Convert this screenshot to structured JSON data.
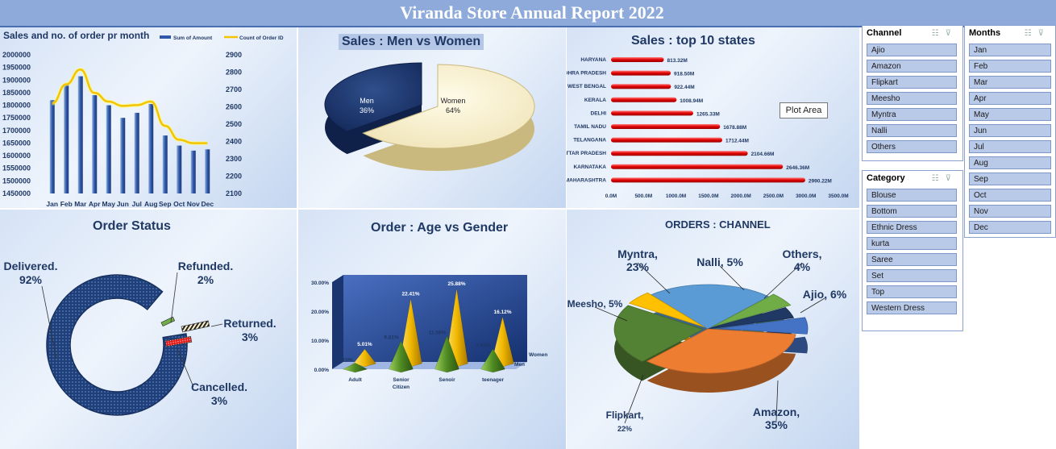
{
  "report_title": "Viranda Store Annual Report 2022",
  "tooltip": "Plot Area",
  "chart_data": [
    {
      "id": "sales_orders_month",
      "type": "bar",
      "title": "Sales and no. of order pr month",
      "categories": [
        "Jan",
        "Feb",
        "Mar",
        "Apr",
        "May",
        "Jun",
        "Jul",
        "Aug",
        "Sep",
        "Oct",
        "Nov",
        "Dec"
      ],
      "series": [
        {
          "name": "Sum of Amount",
          "type": "bar",
          "axis": "left",
          "values": [
            1820000,
            1880000,
            1915000,
            1840000,
            1800000,
            1750000,
            1770000,
            1805000,
            1680000,
            1640000,
            1620000,
            1625000
          ]
        },
        {
          "name": "Count of Order ID",
          "type": "line",
          "axis": "right",
          "values": [
            2620,
            2730,
            2815,
            2680,
            2630,
            2605,
            2610,
            2630,
            2490,
            2410,
            2390,
            2390
          ]
        }
      ],
      "y_left_ticks": [
        "2000000",
        "1950000",
        "1900000",
        "1850000",
        "1800000",
        "1750000",
        "1700000",
        "1650000",
        "1600000",
        "1550000",
        "1500000",
        "1450000"
      ],
      "y_right_ticks": [
        "2900",
        "2800",
        "2700",
        "2600",
        "2500",
        "2400",
        "2300",
        "2200",
        "2100"
      ],
      "ylim_left": [
        1450000,
        2000000
      ],
      "ylim_right": [
        2100,
        2900
      ],
      "legend": "top-right"
    },
    {
      "id": "sales_gender",
      "type": "pie",
      "title": "Sales : Men vs Women",
      "slices": [
        {
          "label": "Men",
          "value": 36,
          "display": "36%"
        },
        {
          "label": "Women",
          "value": 64,
          "display": "64%"
        }
      ]
    },
    {
      "id": "sales_states",
      "type": "bar",
      "orientation": "horizontal",
      "title": "Sales : top 10 states",
      "categories": [
        "HARYANA",
        "ANDHRA PRADESH",
        "WEST BENGAL",
        "KERALA",
        "DELHI",
        "TAMIL NADU",
        "TELANGANA",
        "UTTAR PRADESH",
        "KARNATAKA",
        "MAHARASHTRA"
      ],
      "values": [
        813.32,
        918.5,
        922.44,
        1008.94,
        1265.33,
        1678.88,
        1712.44,
        2104.66,
        2646.36,
        2990.22
      ],
      "labels": [
        "813.32M",
        "918.50M",
        "922.44M",
        "1008.94M",
        "1265.33M",
        "1678.88M",
        "1712.44M",
        "2104.66M",
        "2646.36M",
        "2990.22M"
      ],
      "x_ticks": [
        "0.0M",
        "500.0M",
        "1000.0M",
        "1500.0M",
        "2000.0M",
        "2500.0M",
        "3000.0M",
        "3500.0M"
      ],
      "xlim": [
        0,
        3500
      ]
    },
    {
      "id": "order_status",
      "type": "pie",
      "variant": "doughnut",
      "title": "Order Status",
      "slices": [
        {
          "label": "Delivered.",
          "value": 92,
          "display": "92%"
        },
        {
          "label": "Refunded.",
          "value": 2,
          "display": "2%"
        },
        {
          "label": "Returned.",
          "value": 3,
          "display": "3%"
        },
        {
          "label": "Cancelled.",
          "value": 3,
          "display": "3%"
        }
      ]
    },
    {
      "id": "age_gender",
      "type": "bar",
      "variant": "3d-pyramid",
      "title": "Order : Age vs Gender",
      "categories": [
        "Adult",
        "Senior Citizen",
        "Senoir",
        "teenager"
      ],
      "series": [
        {
          "name": "Men",
          "values": [
            2.15,
            9.81,
            11.58,
            7.03
          ],
          "labels": [
            "2.15%",
            "9.81%",
            "11.58%",
            "7.03%"
          ]
        },
        {
          "name": "Women",
          "values": [
            5.01,
            22.41,
            25.88,
            16.12
          ],
          "labels": [
            "5.01%",
            "22.41%",
            "25.88%",
            "16.12%"
          ]
        }
      ],
      "y_ticks": [
        "30.00%",
        "20.00%",
        "10.00%",
        "0.00%"
      ],
      "ylim": [
        0,
        30
      ]
    },
    {
      "id": "orders_channel",
      "type": "pie",
      "title": "ORDERS : CHANNEL",
      "slices": [
        {
          "label": "Ajio,",
          "value": 6,
          "display": "6%"
        },
        {
          "label": "Amazon,",
          "value": 35,
          "display": "35%"
        },
        {
          "label": "Flipkart,",
          "value": 22,
          "display": "22%"
        },
        {
          "label": "Meesho,",
          "value": 5,
          "display": "5%"
        },
        {
          "label": "Myntra,",
          "value": 23,
          "display": "23%"
        },
        {
          "label": "Nalli,",
          "value": 5,
          "display": "5%"
        },
        {
          "label": "Others,",
          "value": 4,
          "display": "4%"
        }
      ],
      "colors": [
        "#4472c4",
        "#ed7d31",
        "#548235",
        "#ffc000",
        "#5b9bd5",
        "#70ad47",
        "#1f3864"
      ]
    }
  ],
  "slicers": {
    "channel": {
      "title": "Channel",
      "items": [
        "Ajio",
        "Amazon",
        "Flipkart",
        "Meesho",
        "Myntra",
        "Nalli",
        "Others"
      ]
    },
    "category": {
      "title": "Category",
      "items": [
        "Blouse",
        "Bottom",
        "Ethnic Dress",
        "kurta",
        "Saree",
        "Set",
        "Top",
        "Western Dress"
      ]
    },
    "months": {
      "title": "Months",
      "items": [
        "Jan",
        "Feb",
        "Mar",
        "Apr",
        "May",
        "Jun",
        "Jul",
        "Aug",
        "Sep",
        "Oct",
        "Nov",
        "Dec"
      ]
    }
  }
}
